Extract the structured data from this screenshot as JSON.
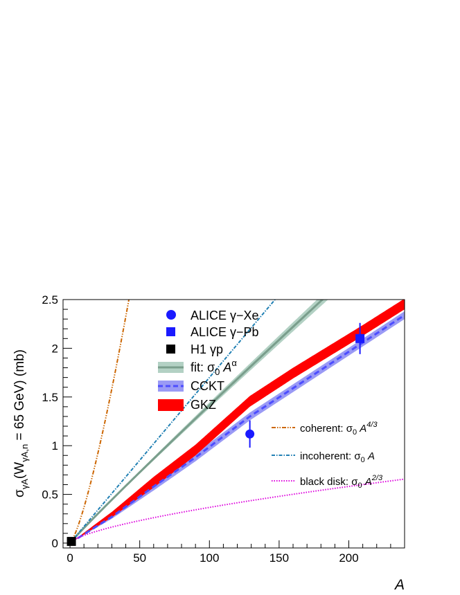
{
  "chart_data": {
    "type": "line",
    "xlabel": "A",
    "ylabel": "σγA(WγA,n = 65 GeV) (mb)",
    "xlim": [
      -5,
      240
    ],
    "ylim": [
      -0.05,
      2.5
    ],
    "xticks": [
      0,
      50,
      100,
      150,
      200
    ],
    "yticks": [
      0,
      0.5,
      1,
      1.5,
      2,
      2.5
    ],
    "colors": {
      "alice": "#1a1aff",
      "h1": "#000000",
      "fit_line": "#7a9e8c",
      "fit_band": "#b3d1c4",
      "cckt_line": "#4d4dff",
      "cckt_band": "#9a9af5",
      "gkz": "#ff0000",
      "coherent": "#cc6600",
      "incoherent": "#1f7fb3",
      "black_disk": "#dd00dd"
    },
    "legend_top": [
      {
        "key": "alice_xe",
        "label": "ALICE γ−Xe"
      },
      {
        "key": "alice_pb",
        "label": "ALICE γ−Pb"
      },
      {
        "key": "h1",
        "label": "H1 γp"
      },
      {
        "key": "fit",
        "label": "fit: σ0 Aα"
      },
      {
        "key": "cckt",
        "label": "CCKT"
      },
      {
        "key": "gkz",
        "label": "GKZ"
      }
    ],
    "legend_bottom": [
      {
        "key": "coherent",
        "label": "coherent: σ0 A4/3"
      },
      {
        "key": "incoherent",
        "label": "incoherent: σ0 A"
      },
      {
        "key": "black_disk",
        "label": "black disk: σ0 A2/3"
      }
    ],
    "points": [
      {
        "name": "H1 γp",
        "x": 1,
        "y": 0.017,
        "err": 0.005,
        "marker": "square-black"
      },
      {
        "name": "ALICE γ−Xe",
        "x": 129,
        "y": 1.12,
        "err": 0.14,
        "marker": "circle"
      },
      {
        "name": "ALICE γ−Pb",
        "x": 208,
        "y": 2.1,
        "err": 0.16,
        "marker": "square"
      }
    ],
    "curves": {
      "sigma0": 0.017,
      "fit_alpha": 0.96,
      "fit_band_halfwidth_at_A240": 0.07,
      "cckt": {
        "x": [
          0,
          30,
          60,
          90,
          129,
          160,
          208,
          240
        ],
        "y": [
          0,
          0.27,
          0.58,
          0.88,
          1.3,
          1.59,
          2.04,
          2.34
        ],
        "band": 0.04
      },
      "gkz": {
        "x": [
          0,
          30,
          60,
          90,
          129,
          160,
          208,
          240
        ],
        "y": [
          0,
          0.29,
          0.62,
          0.95,
          1.45,
          1.74,
          2.16,
          2.45
        ],
        "band_low": 0.05,
        "band_high": 0.06
      },
      "coherent_exponent": 1.3333,
      "incoherent_exponent": 1.0,
      "black_disk_exponent": 0.6667
    }
  }
}
